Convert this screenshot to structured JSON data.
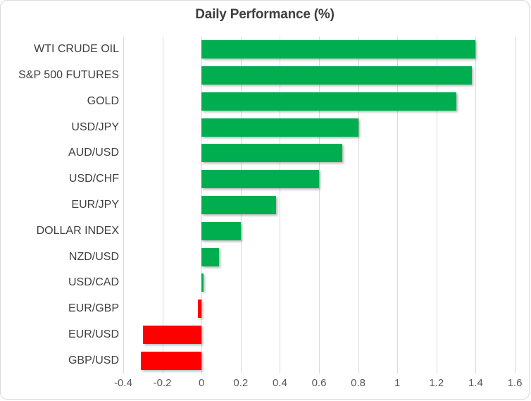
{
  "colors": {
    "positive": "#00AE4F",
    "negative": "#FF0000",
    "gridline": "#D9D9D9",
    "border": "#D9D9D9",
    "title_text": "#3F3F3F",
    "category_text": "#404040",
    "tick_text": "#595959",
    "background": "#FFFFFF"
  },
  "chart_data": {
    "type": "bar",
    "orientation": "horizontal",
    "title": "Daily Performance (%)",
    "categories": [
      "WTI CRUDE OIL",
      "S&P 500 FUTURES",
      "GOLD",
      "USD/JPY",
      "AUD/USD",
      "USD/CHF",
      "EUR/JPY",
      "DOLLAR INDEX",
      "NZD/USD",
      "USD/CAD",
      "EUR/GBP",
      "EUR/USD",
      "GBP/USD"
    ],
    "values": [
      1.4,
      1.38,
      1.3,
      0.8,
      0.72,
      0.6,
      0.38,
      0.2,
      0.09,
      0.01,
      -0.02,
      -0.3,
      -0.31
    ],
    "xlabel": "",
    "ylabel": "",
    "xlim": [
      -0.4,
      1.6
    ],
    "xticks": [
      -0.4,
      -0.2,
      0,
      0.2,
      0.4,
      0.6,
      0.8,
      1,
      1.2,
      1.4,
      1.6
    ],
    "xtick_labels": [
      "-0.4",
      "-0.2",
      "0",
      "0.2",
      "0.4",
      "0.6",
      "0.8",
      "1",
      "1.2",
      "1.4",
      "1.6"
    ],
    "grid": true,
    "legend": false,
    "color_rule": "green if value >= 0 else red"
  }
}
